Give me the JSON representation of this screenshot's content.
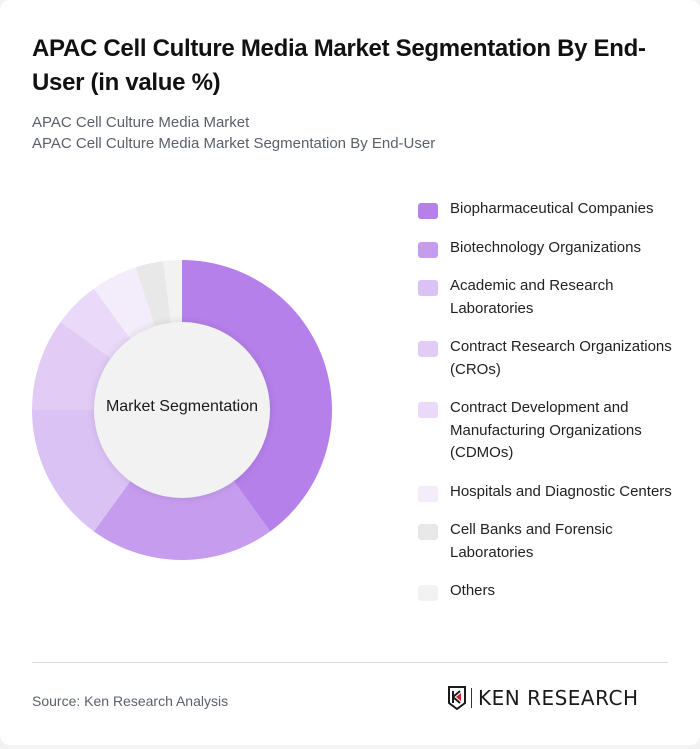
{
  "header": {
    "title": "APAC Cell Culture Media Market Segmentation By End-User (in value %)",
    "subtitle_line1": "APAC Cell Culture Media Market",
    "subtitle_line2": "APAC Cell Culture Media Market Segmentation By End-User"
  },
  "chart": {
    "center_label": "Market Segmentation"
  },
  "legend": [
    {
      "label": "Biopharmaceutical Companies",
      "color": "#b580ea"
    },
    {
      "label": "Biotechnology Organizations",
      "color": "#c69cee"
    },
    {
      "label": "Academic and Research Laboratories",
      "color": "#dbc2f5"
    },
    {
      "label": "Contract Research Organizations (CROs)",
      "color": "#e2ccf6"
    },
    {
      "label": "Contract Development and Manufacturing Organizations (CDMOs)",
      "color": "#ead9f8"
    },
    {
      "label": "Hospitals and Diagnostic Centers",
      "color": "#f3ecfb"
    },
    {
      "label": "Cell Banks and Forensic Laboratories",
      "color": "#e8e8e8"
    },
    {
      "label": "Others",
      "color": "#f2f2f2"
    }
  ],
  "footer": {
    "source": "Source: Ken Research Analysis",
    "logo_text": "KEN RESEARCH"
  },
  "chart_data": {
    "type": "pie",
    "subtype": "donut",
    "title": "APAC Cell Culture Media Market Segmentation By End-User (in value %)",
    "center_label": "Market Segmentation",
    "categories": [
      "Biopharmaceutical Companies",
      "Biotechnology Organizations",
      "Academic and Research Laboratories",
      "Contract Research Organizations (CROs)",
      "Contract Development and Manufacturing Organizations (CDMOs)",
      "Hospitals and Diagnostic Centers",
      "Cell Banks and Forensic Laboratories",
      "Others"
    ],
    "values": [
      40,
      20,
      15,
      10,
      5,
      5,
      3,
      2
    ],
    "colors": [
      "#b580ea",
      "#c69cee",
      "#dbc2f5",
      "#e2ccf6",
      "#ead9f8",
      "#f3ecfb",
      "#e8e8e8",
      "#f2f2f2"
    ],
    "legend_position": "right",
    "start_angle_deg": 0,
    "direction": "clockwise"
  }
}
